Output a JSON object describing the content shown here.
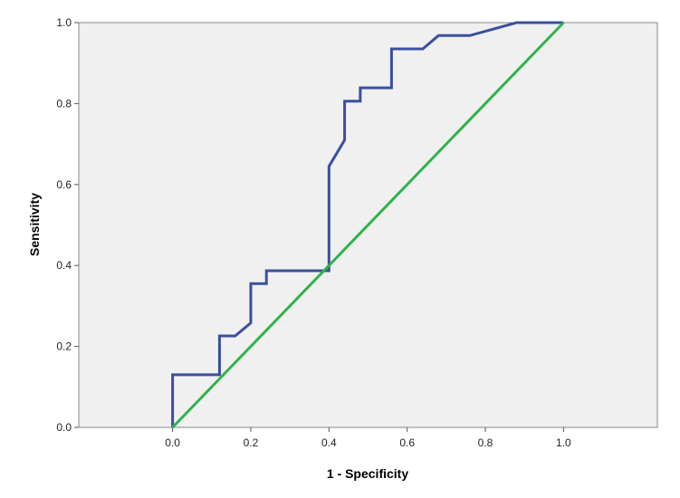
{
  "chart_data": {
    "type": "line",
    "title": "",
    "xlabel": "1 - Specificity",
    "ylabel": "Sensitivity",
    "xlim": [
      -0.24,
      1.24
    ],
    "ylim": [
      0.0,
      1.0
    ],
    "x_ticks": [
      {
        "value": 0.0,
        "label": "0.0"
      },
      {
        "value": 0.2,
        "label": "0.2"
      },
      {
        "value": 0.4,
        "label": "0.4"
      },
      {
        "value": 0.6,
        "label": "0.6"
      },
      {
        "value": 0.8,
        "label": "0.8"
      },
      {
        "value": 1.0,
        "label": "1.0"
      }
    ],
    "y_ticks": [
      {
        "value": 0.0,
        "label": "0.0"
      },
      {
        "value": 0.2,
        "label": "0.2"
      },
      {
        "value": 0.4,
        "label": "0.4"
      },
      {
        "value": 0.6,
        "label": "0.6"
      },
      {
        "value": 0.8,
        "label": "0.8"
      },
      {
        "value": 1.0,
        "label": "1.0"
      }
    ],
    "grid": false,
    "background_color": "#f0f0f0",
    "series": [
      {
        "color": "#3b4fa0",
        "points": [
          [
            0.0,
            0.0
          ],
          [
            0.0,
            0.13
          ],
          [
            0.12,
            0.13
          ],
          [
            0.12,
            0.226
          ],
          [
            0.16,
            0.226
          ],
          [
            0.2,
            0.258
          ],
          [
            0.2,
            0.355
          ],
          [
            0.24,
            0.355
          ],
          [
            0.24,
            0.387
          ],
          [
            0.4,
            0.387
          ],
          [
            0.4,
            0.645
          ],
          [
            0.44,
            0.71
          ],
          [
            0.44,
            0.806
          ],
          [
            0.48,
            0.806
          ],
          [
            0.48,
            0.839
          ],
          [
            0.56,
            0.839
          ],
          [
            0.56,
            0.935
          ],
          [
            0.64,
            0.935
          ],
          [
            0.68,
            0.968
          ],
          [
            0.76,
            0.968
          ],
          [
            0.88,
            1.0
          ],
          [
            1.0,
            1.0
          ]
        ]
      },
      {
        "color": "#2db34a",
        "points": [
          [
            0.0,
            0.0
          ],
          [
            1.0,
            1.0
          ]
        ]
      }
    ]
  }
}
